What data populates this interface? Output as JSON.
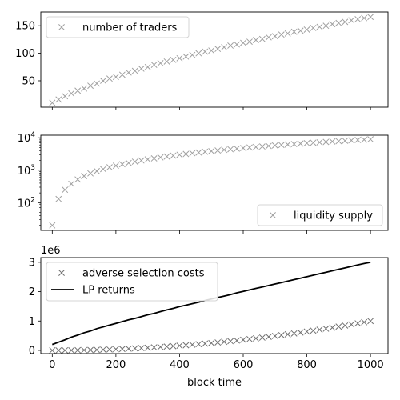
{
  "chart_data": [
    {
      "type": "scatter",
      "xlim": [
        -36,
        1055
      ],
      "ylim": [
        2,
        175
      ],
      "yscale": "linear",
      "yticks": [
        50,
        100,
        150
      ],
      "ytick_labels": [
        "50",
        "100",
        "150"
      ],
      "xlabel": "",
      "ylabel": "",
      "legend_placement": "top-left",
      "grid": false,
      "series": [
        {
          "name": "number of traders",
          "marker": "x",
          "color": "#a0a0a0",
          "x": [
            0,
            20,
            40,
            60,
            80,
            100,
            120,
            140,
            160,
            180,
            200,
            220,
            240,
            260,
            280,
            300,
            320,
            340,
            360,
            380,
            400,
            420,
            440,
            460,
            480,
            500,
            520,
            540,
            560,
            580,
            600,
            620,
            640,
            660,
            680,
            700,
            720,
            740,
            760,
            780,
            800,
            820,
            840,
            860,
            880,
            900,
            920,
            940,
            960,
            980,
            1000
          ],
          "y": [
            10,
            16,
            22,
            27,
            32,
            36,
            41,
            45,
            50,
            54,
            57,
            61,
            65,
            68,
            72,
            75,
            79,
            82,
            85,
            88,
            91,
            94,
            97,
            100,
            103,
            105,
            108,
            111,
            114,
            116,
            119,
            121,
            124,
            126,
            129,
            131,
            134,
            136,
            139,
            141,
            143,
            146,
            148,
            150,
            153,
            155,
            157,
            160,
            162,
            164,
            166
          ]
        }
      ]
    },
    {
      "type": "scatter",
      "xlim": [
        -36,
        1055
      ],
      "ylim": [
        14,
        12000
      ],
      "yscale": "log",
      "yticks": [
        100,
        1000,
        10000
      ],
      "ytick_labels": [
        "10^2",
        "10^3",
        "10^4"
      ],
      "xlabel": "",
      "ylabel": "",
      "legend_placement": "bottom-right",
      "grid": false,
      "series": [
        {
          "name": "liquidity supply",
          "marker": "x",
          "color": "#a0a0a0",
          "x": [
            0,
            20,
            40,
            60,
            80,
            100,
            120,
            140,
            160,
            180,
            200,
            220,
            240,
            260,
            280,
            300,
            320,
            340,
            360,
            380,
            400,
            420,
            440,
            460,
            480,
            500,
            520,
            540,
            560,
            580,
            600,
            620,
            640,
            660,
            680,
            700,
            720,
            740,
            760,
            780,
            800,
            820,
            840,
            860,
            880,
            900,
            920,
            940,
            960,
            980,
            1000
          ],
          "y": [
            20,
            130,
            250,
            380,
            520,
            660,
            800,
            940,
            1080,
            1230,
            1380,
            1530,
            1680,
            1840,
            2000,
            2160,
            2320,
            2490,
            2650,
            2820,
            3000,
            3170,
            3350,
            3520,
            3700,
            3880,
            4070,
            4250,
            4440,
            4630,
            4820,
            5010,
            5200,
            5400,
            5600,
            5800,
            6000,
            6200,
            6400,
            6610,
            6820,
            7030,
            7240,
            7450,
            7670,
            7880,
            8100,
            8320,
            8550,
            8770,
            9000
          ]
        }
      ]
    },
    {
      "type": "line",
      "xlim": [
        -36,
        1055
      ],
      "ylim": [
        -110000,
        3160000
      ],
      "yscale": "linear",
      "yticks": [
        0,
        1000000,
        2000000,
        3000000
      ],
      "ytick_labels": [
        "0",
        "1",
        "2",
        "3"
      ],
      "y_offset_label": "1e6",
      "xticks": [
        0,
        200,
        400,
        600,
        800,
        1000
      ],
      "xtick_labels": [
        "0",
        "200",
        "400",
        "600",
        "800",
        "1000"
      ],
      "xlabel": "block time",
      "ylabel": "",
      "legend_placement": "top-left",
      "grid": false,
      "series": [
        {
          "name": "adverse selection costs",
          "marker": "x",
          "color": "#707070",
          "x": [
            0,
            20,
            40,
            60,
            80,
            100,
            120,
            140,
            160,
            180,
            200,
            220,
            240,
            260,
            280,
            300,
            320,
            340,
            360,
            380,
            400,
            420,
            440,
            460,
            480,
            500,
            520,
            540,
            560,
            580,
            600,
            620,
            640,
            660,
            680,
            700,
            720,
            740,
            760,
            780,
            800,
            820,
            840,
            860,
            880,
            900,
            920,
            940,
            960,
            980,
            1000
          ],
          "y": [
            0,
            400,
            1600,
            3600,
            6400,
            10000,
            14400,
            19600,
            25600,
            32400,
            40000,
            48400,
            57600,
            67600,
            78400,
            90000,
            102400,
            115600,
            129600,
            144400,
            160000,
            176400,
            193600,
            211600,
            230400,
            250000,
            270400,
            291600,
            313600,
            336400,
            360000,
            384400,
            409600,
            435600,
            462400,
            490000,
            518400,
            547600,
            577600,
            608400,
            640000,
            672400,
            705600,
            739600,
            774400,
            810000,
            846400,
            883600,
            921600,
            960400,
            1000000
          ]
        },
        {
          "name": "LP returns",
          "marker": "",
          "color": "#000000",
          "x": [
            0,
            20,
            40,
            60,
            80,
            100,
            120,
            140,
            160,
            180,
            200,
            220,
            240,
            260,
            280,
            300,
            320,
            340,
            360,
            380,
            400,
            420,
            440,
            460,
            480,
            500,
            520,
            540,
            560,
            580,
            600,
            620,
            640,
            660,
            680,
            700,
            720,
            740,
            760,
            780,
            800,
            820,
            840,
            860,
            880,
            900,
            920,
            940,
            960,
            980,
            1000
          ],
          "y": [
            200000,
            280000,
            360000,
            450000,
            520000,
            600000,
            660000,
            740000,
            800000,
            860000,
            920000,
            980000,
            1040000,
            1090000,
            1150000,
            1210000,
            1260000,
            1320000,
            1380000,
            1430000,
            1490000,
            1540000,
            1590000,
            1640000,
            1700000,
            1750000,
            1800000,
            1850000,
            1900000,
            1960000,
            2010000,
            2060000,
            2110000,
            2160000,
            2210000,
            2260000,
            2310000,
            2360000,
            2410000,
            2460000,
            2510000,
            2560000,
            2610000,
            2660000,
            2710000,
            2760000,
            2810000,
            2860000,
            2910000,
            2960000,
            3000000
          ]
        }
      ]
    }
  ]
}
